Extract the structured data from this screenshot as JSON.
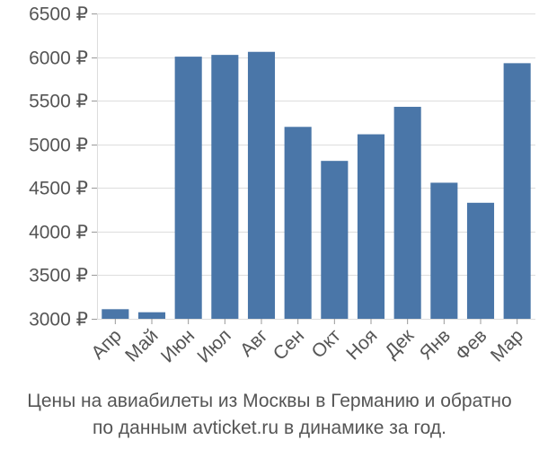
{
  "chart_data": {
    "type": "bar",
    "categories": [
      "Апр",
      "Май",
      "Июн",
      "Июл",
      "Авг",
      "Сен",
      "Окт",
      "Ноя",
      "Дек",
      "Янв",
      "Фев",
      "Мар"
    ],
    "values": [
      3110,
      3075,
      6005,
      6025,
      6060,
      5200,
      4810,
      5115,
      5430,
      4560,
      4330,
      5930
    ],
    "y_ticks": [
      3000,
      3500,
      4000,
      4500,
      5000,
      5500,
      6000,
      6500
    ],
    "y_tick_labels": [
      "3000 ₽",
      "3500 ₽",
      "4000 ₽",
      "4500 ₽",
      "5000 ₽",
      "5500 ₽",
      "6000 ₽",
      "6500 ₽"
    ],
    "ylim": [
      3000,
      6500
    ],
    "grid": true,
    "bar_color": "#4a76a8",
    "grid_color": "#dddddd",
    "caption_line1": "Цены на авиабилеты из Москвы в Германию и обратно",
    "caption_line2": "по данным avticket.ru в динамике за год."
  }
}
